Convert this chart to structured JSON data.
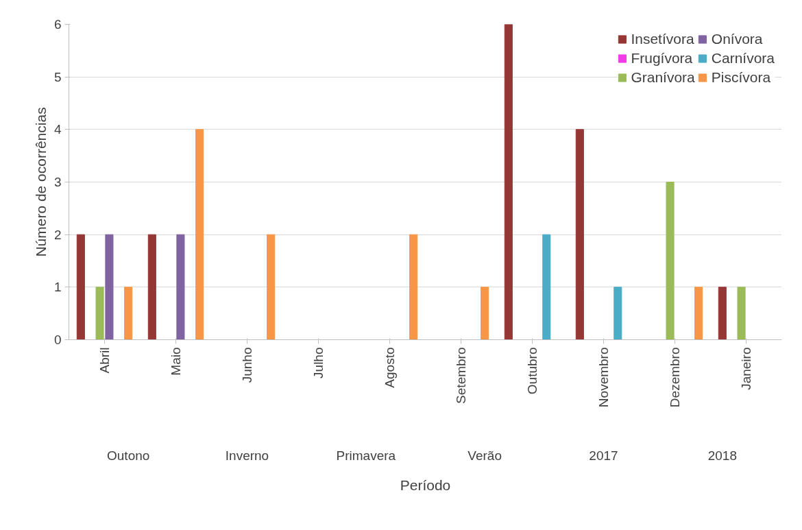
{
  "chart_data": {
    "type": "bar",
    "xlabel": "Período",
    "ylabel": "Número de ocorrências",
    "categories": [
      "Abril",
      "Maio",
      "Junho",
      "Julho",
      "Agosto",
      "Setembro",
      "Outubro",
      "Novembro",
      "Dezembro",
      "Janeiro"
    ],
    "series": [
      {
        "name": "Insetívora",
        "color": "#953735",
        "values": [
          2,
          2,
          0,
          0,
          0,
          0,
          6,
          4,
          0,
          1
        ]
      },
      {
        "name": "Frugívora",
        "color": "#f03ce6",
        "values": [
          0,
          0,
          0,
          0,
          0,
          0,
          0,
          0,
          0,
          0
        ]
      },
      {
        "name": "Granívora",
        "color": "#9bbb59",
        "values": [
          1,
          0,
          0,
          0,
          0,
          0,
          0,
          0,
          3,
          1
        ]
      },
      {
        "name": "Onívora",
        "color": "#8064a2",
        "values": [
          2,
          2,
          0,
          0,
          0,
          0,
          0,
          0,
          0,
          0
        ]
      },
      {
        "name": "Carnívora",
        "color": "#4bacc6",
        "values": [
          0,
          0,
          0,
          0,
          0,
          0,
          2,
          1,
          0,
          0
        ]
      },
      {
        "name": "Piscívora",
        "color": "#f79646",
        "values": [
          1,
          4,
          2,
          0,
          2,
          1,
          0,
          0,
          1,
          0
        ]
      }
    ],
    "annotations": [
      "Outono",
      "Inverno",
      "Primavera",
      "Verão",
      "2017",
      "2018"
    ],
    "ylim": [
      0,
      6
    ],
    "yticks": [
      0,
      1,
      2,
      3,
      4,
      5,
      6
    ],
    "grid": "y",
    "legend": "top right"
  }
}
